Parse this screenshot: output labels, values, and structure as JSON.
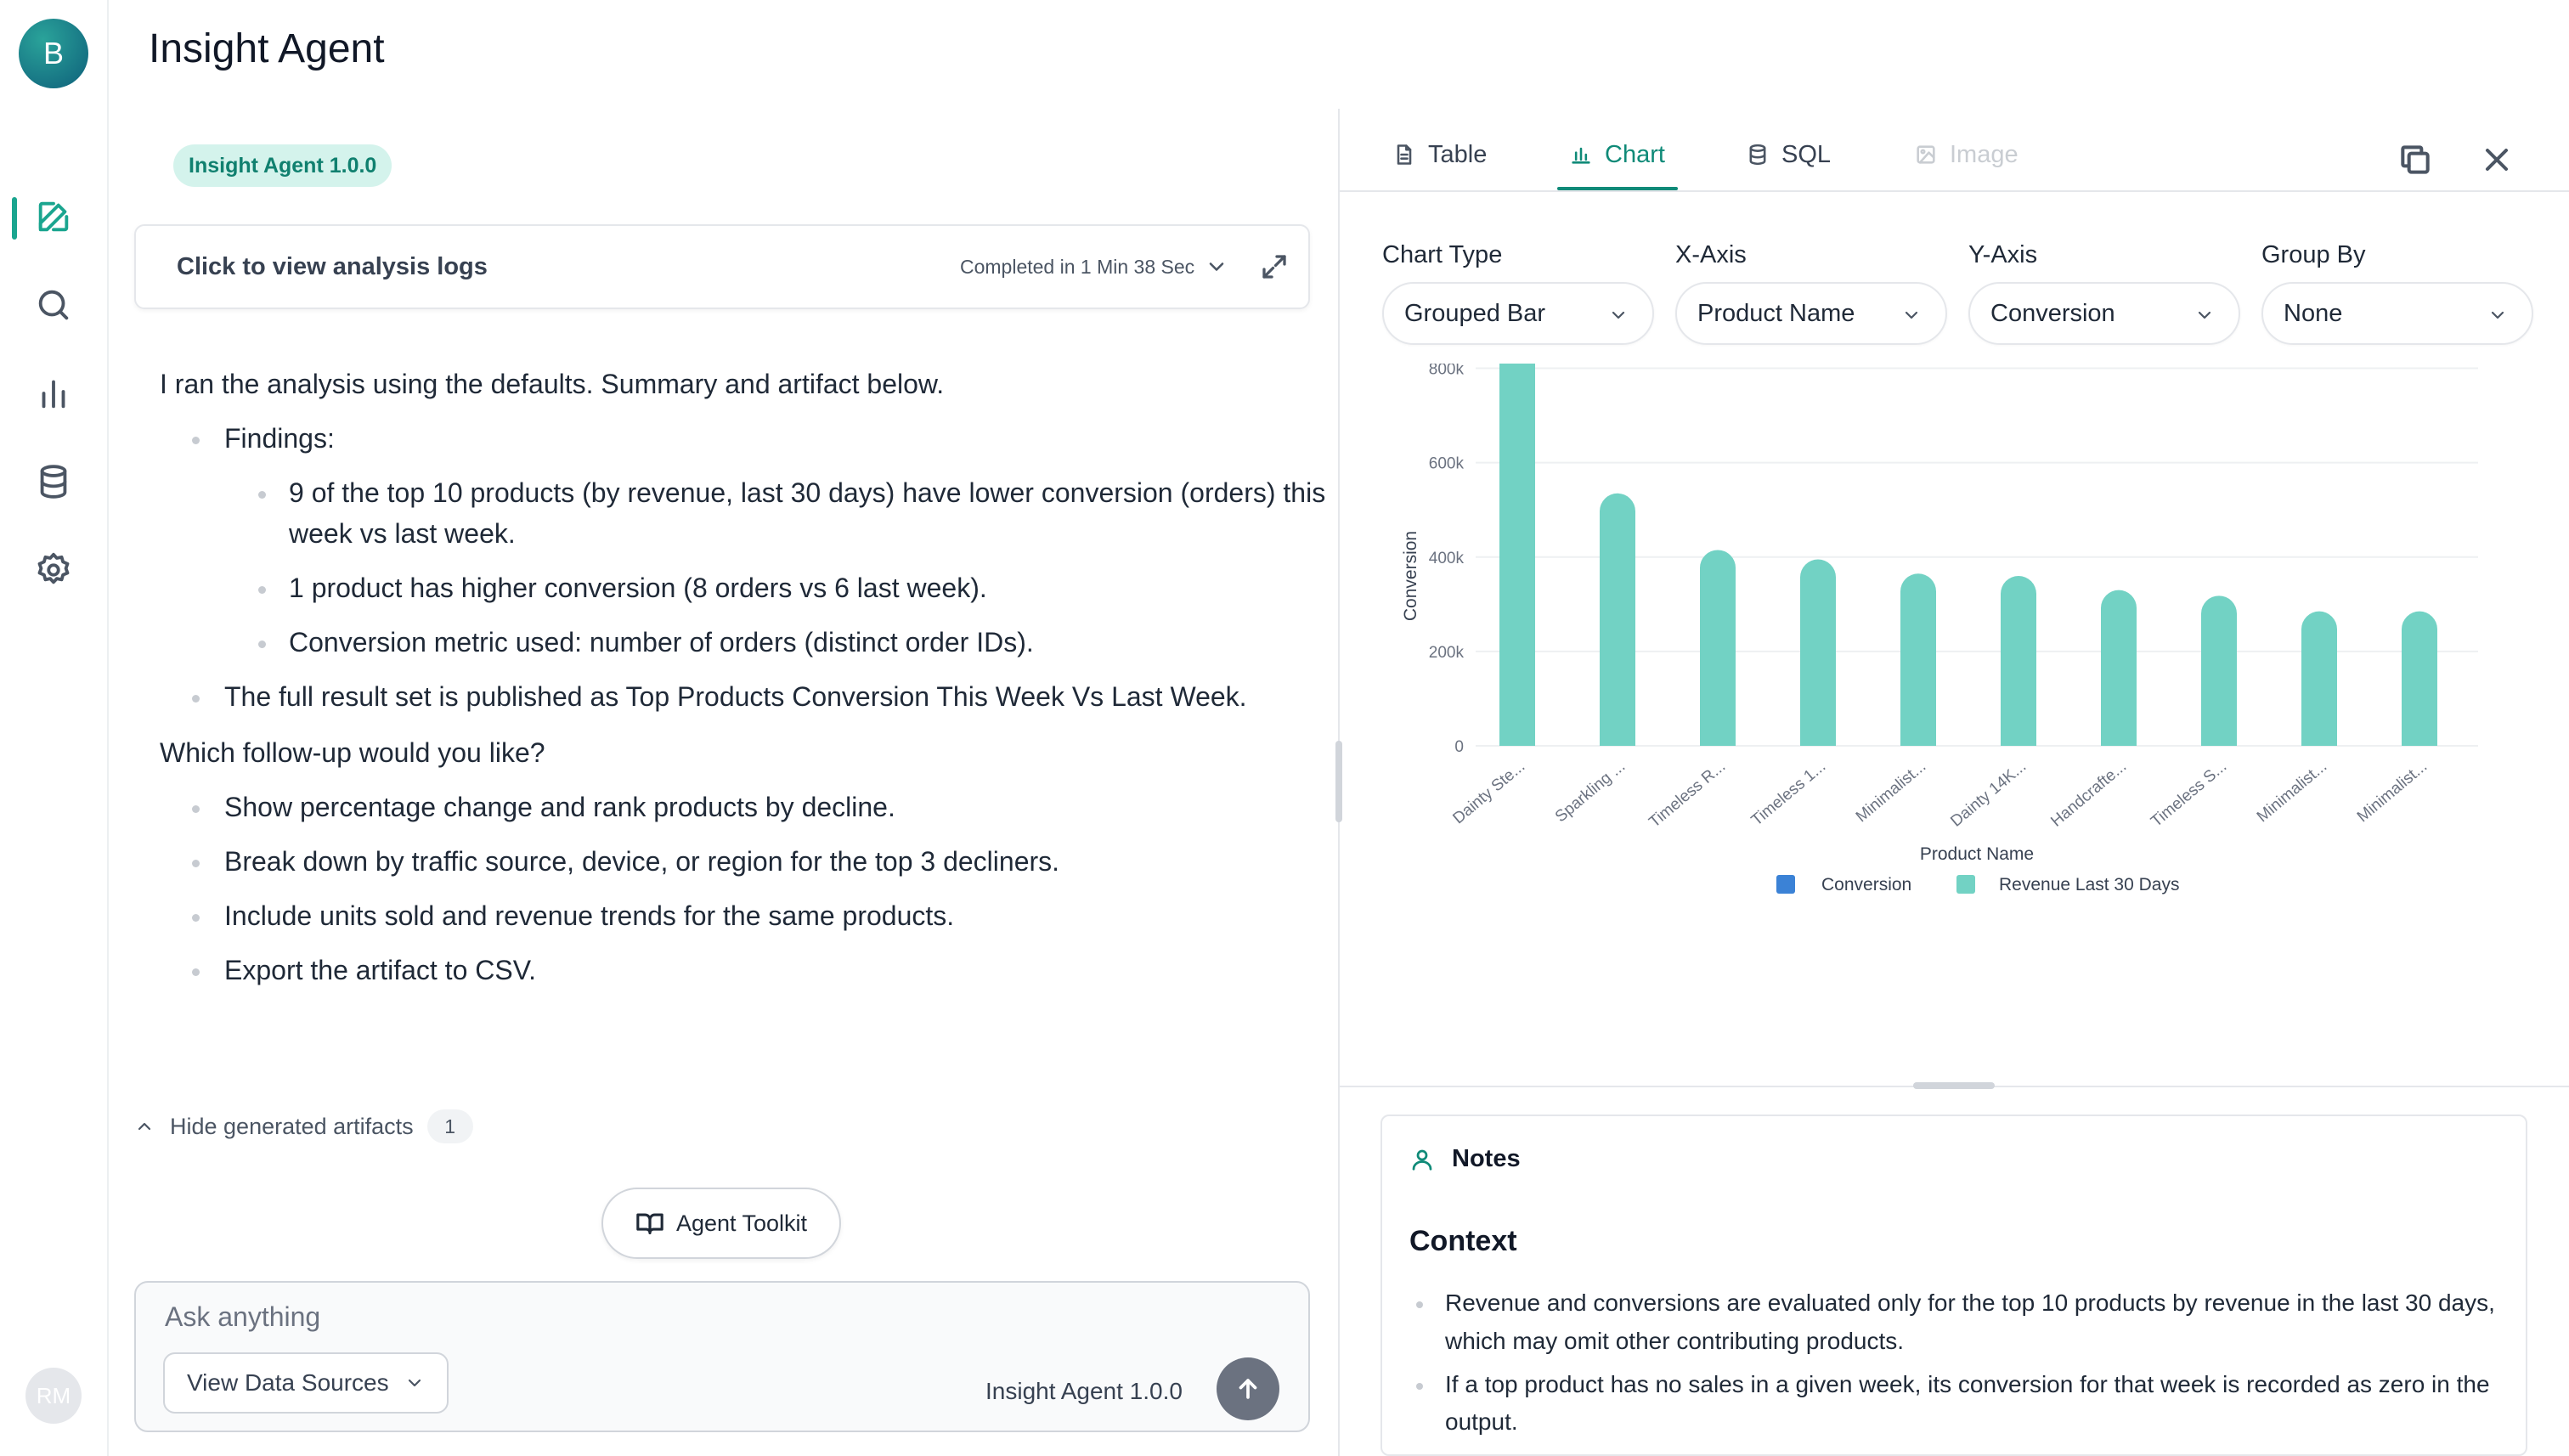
{
  "app": {
    "title": "Insight Agent",
    "logo_letter": "B",
    "user_initials": "RM"
  },
  "rail": {
    "items": [
      {
        "name": "new-chat",
        "icon": "edit-icon",
        "active": true
      },
      {
        "name": "search",
        "icon": "search-icon"
      },
      {
        "name": "analytics",
        "icon": "bar-chart-icon"
      },
      {
        "name": "data",
        "icon": "database-icon"
      },
      {
        "name": "settings",
        "icon": "gear-icon"
      }
    ]
  },
  "chat": {
    "version_badge": "Insight Agent 1.0.0",
    "logs": {
      "title": "Click to view analysis logs",
      "status": "Completed in 1 Min 38 Sec"
    },
    "message": {
      "intro": "I ran the analysis using the defaults. Summary and artifact below.",
      "findings_label": "Findings:",
      "findings": [
        "9 of the top 10 products (by revenue, last 30 days) have lower conversion (orders) this week vs last week.",
        "1 product has higher conversion (8 orders vs 6 last week).",
        "Conversion metric used: number of orders (distinct order IDs)."
      ],
      "published": "The full result set is published as Top Products Conversion This Week Vs Last Week.",
      "followup_question": "Which follow-up would you like?",
      "followups": [
        "Show percentage change and rank products by decline.",
        "Break down by traffic source, device, or region for the top 3 decliners.",
        "Include units sold and revenue trends for the same products.",
        "Export the artifact to CSV."
      ]
    },
    "artifacts_toggle": {
      "label": "Hide generated artifacts",
      "count": "1"
    },
    "toolkit_button": "Agent Toolkit",
    "composer": {
      "placeholder": "Ask anything",
      "sources_button": "View Data Sources",
      "agent_version": "Insight Agent 1.0.0"
    }
  },
  "panel": {
    "tabs": [
      {
        "label": "Table",
        "icon": "file-icon"
      },
      {
        "label": "Chart",
        "icon": "bar-chart-icon",
        "active": true
      },
      {
        "label": "SQL",
        "icon": "database-icon"
      },
      {
        "label": "Image",
        "icon": "image-icon",
        "disabled": true
      }
    ],
    "controls": {
      "chart_type": {
        "label": "Chart Type",
        "value": "Grouped Bar"
      },
      "x_axis": {
        "label": "X-Axis",
        "value": "Product Name"
      },
      "y_axis": {
        "label": "Y-Axis",
        "value": "Conversion"
      },
      "group_by": {
        "label": "Group By",
        "value": "None"
      }
    },
    "notes": {
      "title": "Notes",
      "heading": "Context",
      "bullets": [
        "Revenue and conversions are evaluated only for the top 10 products by revenue in the last 30 days, which may omit other contributing products.",
        "If a top product has no sales in a given week, its conversion for that week is recorded as zero in the output."
      ]
    }
  },
  "chart_data": {
    "type": "bar",
    "title": "",
    "xlabel": "Product Name",
    "ylabel": "Conversion",
    "ylim": [
      0,
      900000
    ],
    "yticks": [
      0,
      200000,
      400000,
      600000,
      800000
    ],
    "ytick_labels": [
      "0",
      "200k",
      "400k",
      "600k",
      "800k"
    ],
    "grid": true,
    "legend_position": "bottom",
    "categories": [
      "Dainty Ste...",
      "Sparkling ...",
      "Timeless R...",
      "Timeless 1...",
      "Minimalist...",
      "Dainty 14K...",
      "Handcrafte...",
      "Timeless S...",
      "Minimalist...",
      "Minimalist..."
    ],
    "series": [
      {
        "name": "Conversion",
        "color": "#3b82d6",
        "values": [
          0,
          0,
          0,
          0,
          0,
          0,
          0,
          0,
          0,
          0
        ]
      },
      {
        "name": "Revenue Last 30 Days",
        "color": "#72d2c4",
        "values": [
          890000,
          535000,
          415000,
          395000,
          365000,
          360000,
          330000,
          318000,
          285000,
          285000
        ]
      }
    ]
  }
}
